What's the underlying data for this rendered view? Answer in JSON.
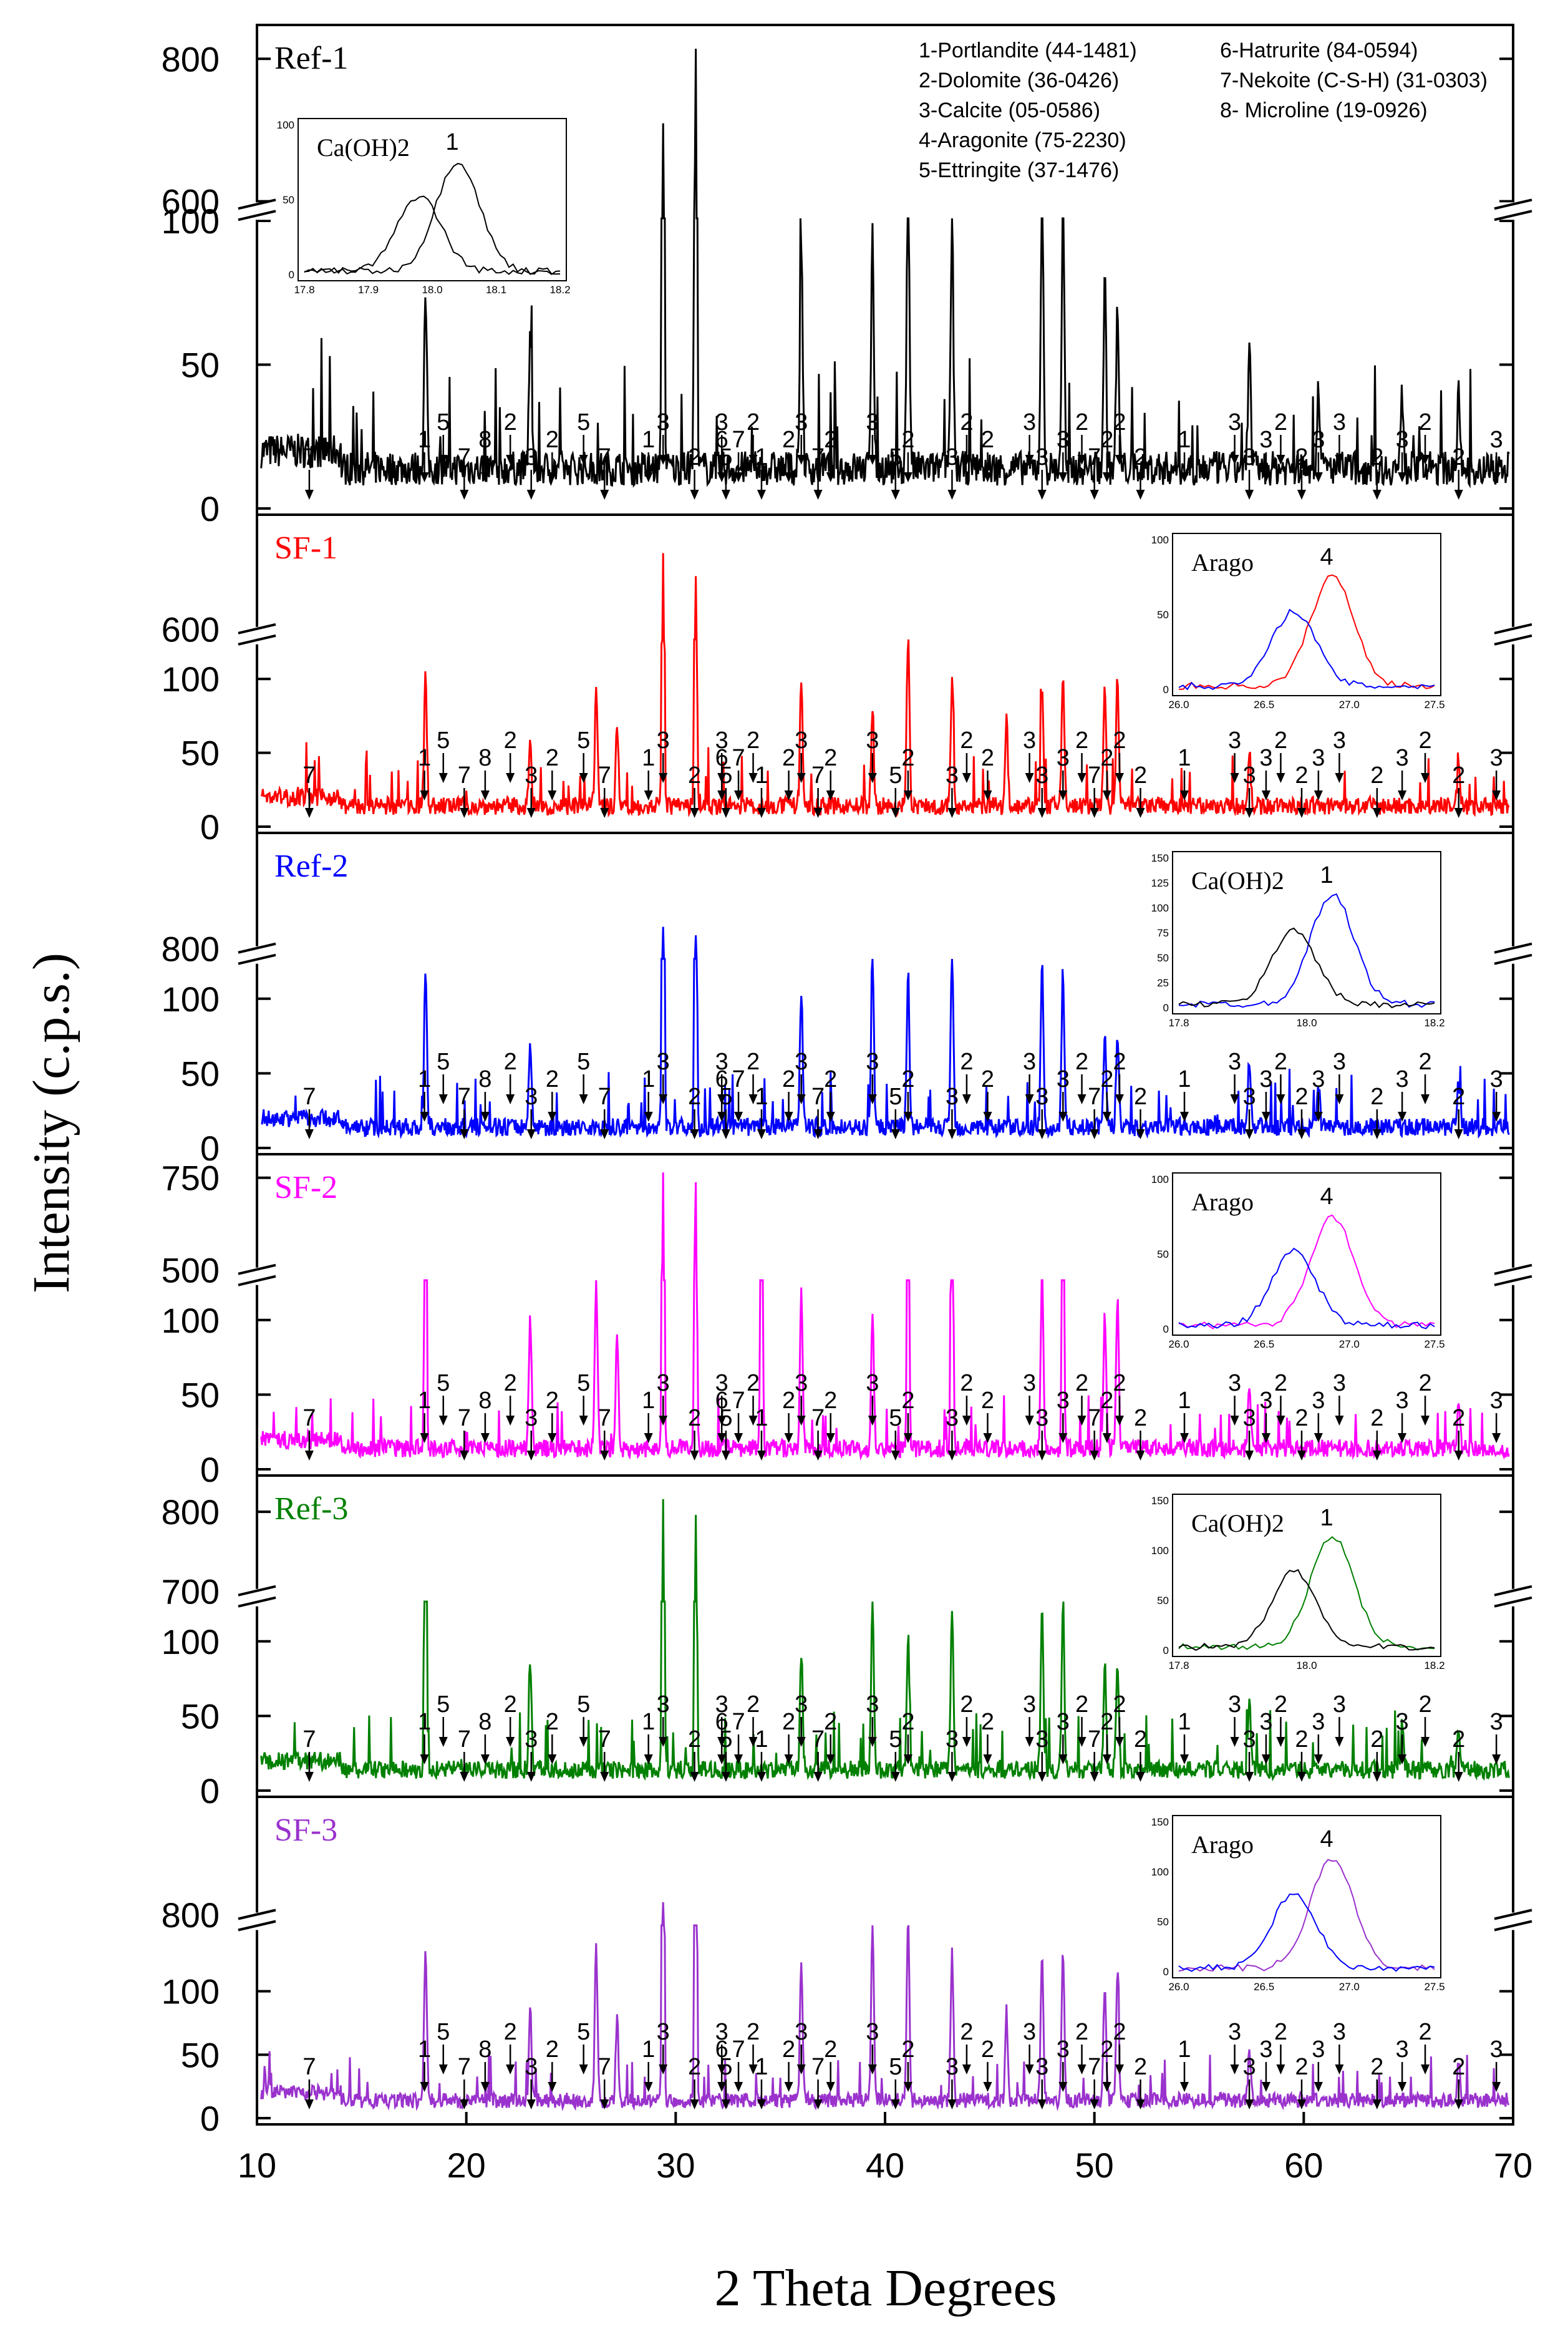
{
  "chart_data": {
    "type": "line",
    "xlabel": "2 Theta Degrees",
    "ylabel": "Intensity (c.p.s.)",
    "xlim": [
      10,
      70
    ],
    "xticks": [
      "10",
      "20",
      "30",
      "40",
      "50",
      "60",
      "70"
    ],
    "legend": [
      "1-Portlandite (44-1481)",
      "2-Dolomite (36-0426)",
      "3-Calcite (05-0586)",
      "4-Aragonite (75-2230)",
      "5-Ettringite (37-1476)",
      "6-Hatrurite (84-0594)",
      "7-Nekoite (C-S-H) (31-0303)",
      "8- Microline (19-0926)"
    ],
    "peak_positions": {
      "1": 18.0,
      "2": 30.9,
      "3": 29.4,
      "4": 26.2,
      "5": 18.9,
      "6": 32.2,
      "7": 12.5,
      "8": 20.9
    },
    "panels": [
      {
        "name": "Ref-1",
        "color": "#000000",
        "yticks": [
          {
            "label": "800",
            "value": 800
          },
          {
            "label": "600",
            "value": 600
          },
          {
            "label": "100",
            "value": 100
          },
          {
            "label": "50",
            "value": 50
          },
          {
            "label": "0",
            "value": 0
          }
        ],
        "break_between": [
          100,
          600
        ],
        "peaks": [
          {
            "x": 18.05,
            "y": 60
          },
          {
            "x": 23.05,
            "y": 45
          },
          {
            "x": 29.4,
            "y": 700
          },
          {
            "x": 30.95,
            "y": 820
          },
          {
            "x": 36.0,
            "y": 80
          },
          {
            "x": 39.4,
            "y": 85
          },
          {
            "x": 41.1,
            "y": 110
          },
          {
            "x": 43.2,
            "y": 85
          },
          {
            "x": 47.5,
            "y": 95
          },
          {
            "x": 48.5,
            "y": 88
          },
          {
            "x": 50.5,
            "y": 65
          },
          {
            "x": 51.1,
            "y": 55
          },
          {
            "x": 57.4,
            "y": 45
          },
          {
            "x": 60.7,
            "y": 30
          },
          {
            "x": 64.7,
            "y": 25
          },
          {
            "x": 67.4,
            "y": 25
          }
        ],
        "inset": {
          "label": "Ca(OH)2",
          "annotation": "1",
          "x_ticks": [
            "17.8",
            "17.9",
            "18.0",
            "18.1",
            "18.2"
          ],
          "y_ticks": [
            "100",
            "50",
            "0"
          ]
        }
      },
      {
        "name": "SF-1",
        "color": "#ff0000",
        "yticks": [
          {
            "label": "600",
            "value": 600
          },
          {
            "label": "100",
            "value": 100
          },
          {
            "label": "50",
            "value": 50
          },
          {
            "label": "0",
            "value": 0
          }
        ],
        "break_between": [
          125,
          600
        ],
        "peaks": [
          {
            "x": 18.05,
            "y": 90
          },
          {
            "x": 23.05,
            "y": 40
          },
          {
            "x": 26.2,
            "y": 75
          },
          {
            "x": 27.2,
            "y": 55
          },
          {
            "x": 29.4,
            "y": 650
          },
          {
            "x": 30.95,
            "y": 650
          },
          {
            "x": 36.0,
            "y": 85
          },
          {
            "x": 39.4,
            "y": 70
          },
          {
            "x": 41.1,
            "y": 115
          },
          {
            "x": 43.2,
            "y": 85
          },
          {
            "x": 45.8,
            "y": 60
          },
          {
            "x": 47.5,
            "y": 80
          },
          {
            "x": 48.5,
            "y": 90
          },
          {
            "x": 50.5,
            "y": 80
          },
          {
            "x": 51.1,
            "y": 85
          },
          {
            "x": 57.4,
            "y": 40
          },
          {
            "x": 67.4,
            "y": 30
          }
        ],
        "inset": {
          "label": "Arago",
          "annotation": "4",
          "x_ticks": [
            "26.0",
            "26.5",
            "27.0",
            "27.5"
          ],
          "y_ticks": [
            "100",
            "50",
            "0"
          ]
        }
      },
      {
        "name": "Ref-2",
        "color": "#0000ff",
        "yticks": [
          {
            "label": "800",
            "value": 800
          },
          {
            "label": "100",
            "value": 100
          },
          {
            "label": "50",
            "value": 50
          },
          {
            "label": "0",
            "value": 0
          }
        ],
        "break_between": [
          125,
          800
        ],
        "peaks": [
          {
            "x": 18.05,
            "y": 105
          },
          {
            "x": 23.05,
            "y": 60
          },
          {
            "x": 29.4,
            "y": 800
          },
          {
            "x": 30.95,
            "y": 800
          },
          {
            "x": 36.0,
            "y": 90
          },
          {
            "x": 39.4,
            "y": 120
          },
          {
            "x": 41.1,
            "y": 105
          },
          {
            "x": 43.2,
            "y": 120
          },
          {
            "x": 47.5,
            "y": 110
          },
          {
            "x": 48.5,
            "y": 105
          },
          {
            "x": 50.5,
            "y": 65
          },
          {
            "x": 51.1,
            "y": 65
          },
          {
            "x": 57.4,
            "y": 45
          },
          {
            "x": 60.7,
            "y": 30
          },
          {
            "x": 67.4,
            "y": 30
          }
        ],
        "inset": {
          "label": "Ca(OH)2",
          "annotation": "1",
          "x_ticks": [
            "17.8",
            "18.0",
            "18.2"
          ],
          "y_ticks": [
            "150",
            "125",
            "100",
            "75",
            "50",
            "25",
            "0"
          ]
        }
      },
      {
        "name": "SF-2",
        "color": "#ff00ff",
        "yticks": [
          {
            "label": "750",
            "value": 750
          },
          {
            "label": "500",
            "value": 500
          },
          {
            "label": "100",
            "value": 100
          },
          {
            "label": "50",
            "value": 50
          },
          {
            "label": "0",
            "value": 0
          }
        ],
        "break_between": [
          125,
          500
        ],
        "peaks": [
          {
            "x": 18.05,
            "y": 480
          },
          {
            "x": 23.05,
            "y": 90
          },
          {
            "x": 26.2,
            "y": 115
          },
          {
            "x": 27.2,
            "y": 75
          },
          {
            "x": 29.4,
            "y": 750
          },
          {
            "x": 30.95,
            "y": 750
          },
          {
            "x": 34.1,
            "y": 490
          },
          {
            "x": 36.0,
            "y": 110
          },
          {
            "x": 39.4,
            "y": 95
          },
          {
            "x": 41.1,
            "y": 490
          },
          {
            "x": 43.2,
            "y": 480
          },
          {
            "x": 47.5,
            "y": 120
          },
          {
            "x": 48.5,
            "y": 490
          },
          {
            "x": 50.5,
            "y": 90
          },
          {
            "x": 51.1,
            "y": 100
          },
          {
            "x": 57.4,
            "y": 45
          },
          {
            "x": 67.4,
            "y": 35
          }
        ],
        "inset": {
          "label": "Arago",
          "annotation": "4",
          "x_ticks": [
            "26.0",
            "26.5",
            "27.0",
            "27.5"
          ],
          "y_ticks": [
            "100",
            "50",
            "0"
          ]
        }
      },
      {
        "name": "Ref-3",
        "color": "#008000",
        "yticks": [
          {
            "label": "800",
            "value": 800
          },
          {
            "label": "700",
            "value": 700
          },
          {
            "label": "100",
            "value": 100
          },
          {
            "label": "50",
            "value": 50
          },
          {
            "label": "0",
            "value": 0
          }
        ],
        "break_between": [
          125,
          700
        ],
        "peaks": [
          {
            "x": 18.05,
            "y": 710
          },
          {
            "x": 23.05,
            "y": 70
          },
          {
            "x": 29.4,
            "y": 800
          },
          {
            "x": 30.95,
            "y": 800
          },
          {
            "x": 36.0,
            "y": 80
          },
          {
            "x": 39.4,
            "y": 115
          },
          {
            "x": 41.1,
            "y": 90
          },
          {
            "x": 43.2,
            "y": 110
          },
          {
            "x": 47.5,
            "y": 105
          },
          {
            "x": 48.5,
            "y": 110
          },
          {
            "x": 50.5,
            "y": 70
          },
          {
            "x": 51.1,
            "y": 75
          },
          {
            "x": 57.4,
            "y": 45
          },
          {
            "x": 64.7,
            "y": 30
          },
          {
            "x": 67.4,
            "y": 25
          }
        ],
        "inset": {
          "label": "Ca(OH)2",
          "annotation": "1",
          "x_ticks": [
            "17.8",
            "18.0",
            "18.2"
          ],
          "y_ticks": [
            "150",
            "100",
            "50",
            "0"
          ]
        }
      },
      {
        "name": "SF-3",
        "color": "#9a32cd",
        "yticks": [
          {
            "label": "800",
            "value": 800
          },
          {
            "label": "100",
            "value": 100
          },
          {
            "label": "50",
            "value": 50
          },
          {
            "label": "0",
            "value": 0
          }
        ],
        "break_between": [
          150,
          800
        ],
        "peaks": [
          {
            "x": 18.05,
            "y": 120
          },
          {
            "x": 23.05,
            "y": 75
          },
          {
            "x": 26.2,
            "y": 120
          },
          {
            "x": 27.2,
            "y": 65
          },
          {
            "x": 29.4,
            "y": 800
          },
          {
            "x": 30.95,
            "y": 800
          },
          {
            "x": 36.0,
            "y": 110
          },
          {
            "x": 39.4,
            "y": 145
          },
          {
            "x": 41.1,
            "y": 145
          },
          {
            "x": 43.2,
            "y": 120
          },
          {
            "x": 45.8,
            "y": 70
          },
          {
            "x": 47.5,
            "y": 110
          },
          {
            "x": 48.5,
            "y": 115
          },
          {
            "x": 50.5,
            "y": 95
          },
          {
            "x": 51.1,
            "y": 100
          },
          {
            "x": 57.4,
            "y": 40
          },
          {
            "x": 67.4,
            "y": 30
          }
        ],
        "inset": {
          "label": "Arago",
          "annotation": "4",
          "x_ticks": [
            "26.0",
            "26.5",
            "27.0",
            "27.5"
          ],
          "y_ticks": [
            "150",
            "100",
            "50",
            "0"
          ]
        }
      }
    ],
    "peak_labels": [
      [
        "7",
        12.5
      ],
      [
        "1",
        18.0
      ],
      [
        "5",
        18.9
      ],
      [
        "7",
        19.9
      ],
      [
        "8",
        20.9
      ],
      [
        "2",
        22.1
      ],
      [
        "3",
        23.1
      ],
      [
        "2",
        24.1
      ],
      [
        "5",
        25.6
      ],
      [
        "7",
        26.6
      ],
      [
        "1",
        28.7
      ],
      [
        "3",
        29.4
      ],
      [
        "2",
        30.9
      ],
      [
        "6",
        32.2
      ],
      [
        "3",
        32.2
      ],
      [
        "5",
        32.4
      ],
      [
        "7",
        33.0
      ],
      [
        "2",
        33.7
      ],
      [
        "1",
        34.1
      ],
      [
        "2",
        35.4
      ],
      [
        "3",
        36.0
      ],
      [
        "7",
        36.8
      ],
      [
        "2",
        37.4
      ],
      [
        "3",
        39.4
      ],
      [
        "5",
        40.5
      ],
      [
        "2",
        41.1
      ],
      [
        "2",
        43.9
      ],
      [
        "3",
        43.2
      ],
      [
        "2",
        44.9
      ],
      [
        "3",
        46.9
      ],
      [
        "3",
        47.5
      ],
      [
        "3",
        48.5
      ],
      [
        "2",
        49.4
      ],
      [
        "7",
        50.0
      ],
      [
        "2",
        50.6
      ],
      [
        "2",
        51.2
      ],
      [
        "2",
        52.2
      ],
      [
        "1",
        54.3
      ],
      [
        "3",
        56.7
      ],
      [
        "3",
        57.4
      ],
      [
        "3",
        58.2
      ],
      [
        "2",
        58.9
      ],
      [
        "2",
        59.9
      ],
      [
        "3",
        60.7
      ],
      [
        "3",
        61.7
      ],
      [
        "2",
        63.5
      ],
      [
        "3",
        64.7
      ],
      [
        "2",
        65.8
      ],
      [
        "2",
        67.4
      ],
      [
        "3",
        69.2
      ]
    ]
  }
}
